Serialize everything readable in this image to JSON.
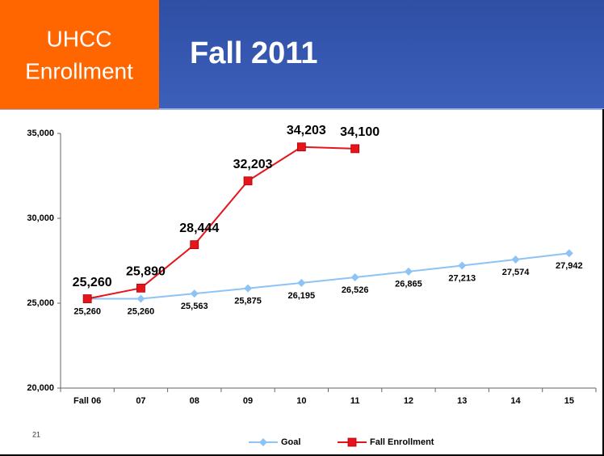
{
  "header": {
    "label": [
      "UHCC",
      "Enrollment"
    ],
    "title": "Fall 2011"
  },
  "slide_number": "21",
  "chart_data": {
    "type": "line",
    "categories": [
      "Fall 06",
      "07",
      "08",
      "09",
      "10",
      "11",
      "12",
      "13",
      "14",
      "15"
    ],
    "series": [
      {
        "name": "Goal",
        "color": "#8ec3f5",
        "marker": "diamond",
        "values": [
          25260,
          25260,
          25563,
          25875,
          26195,
          26526,
          26865,
          27213,
          27574,
          27942
        ],
        "value_labels": [
          "25,260",
          "25,260",
          "25,563",
          "25,875",
          "26,195",
          "26,526",
          "26,865",
          "27,213",
          "27,574",
          "27,942"
        ]
      },
      {
        "name": "Fall Enrollment",
        "color": "#e8141c",
        "marker": "square",
        "values": [
          25260,
          25890,
          28444,
          32203,
          34203,
          34100,
          null,
          null,
          null,
          null
        ],
        "value_labels": [
          "25,260",
          "25,890",
          "28,444",
          "32,203",
          "34,203",
          "34,100",
          null,
          null,
          null,
          null
        ]
      }
    ],
    "ylim": [
      20000,
      35000
    ],
    "yticks": [
      {
        "value": 20000,
        "label": "20,000"
      },
      {
        "value": 25000,
        "label": "25,000"
      },
      {
        "value": 30000,
        "label": "30,000"
      },
      {
        "value": 35000,
        "label": "35,000"
      }
    ],
    "grid": false,
    "legend": "bottom"
  }
}
